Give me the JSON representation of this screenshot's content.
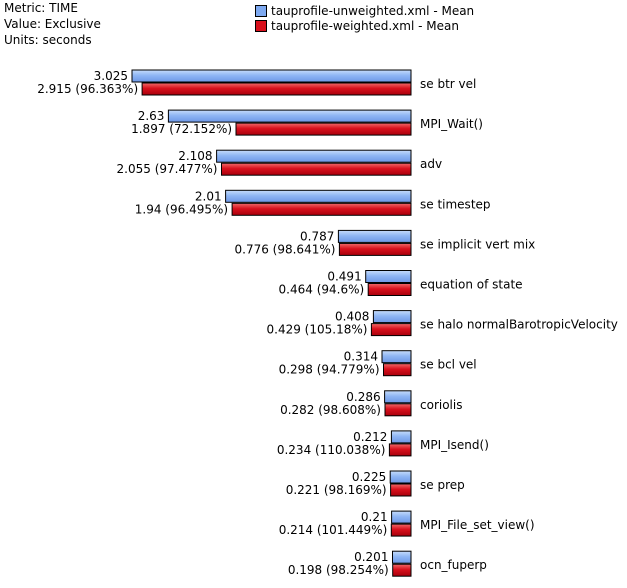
{
  "header": {
    "metric": "Metric: TIME",
    "value": "Value: Exclusive",
    "units": "Units: seconds"
  },
  "legend": [
    {
      "label": "tauprofile-unweighted.xml - Mean",
      "color": "#7ea9f0"
    },
    {
      "label": "tauprofile-weighted.xml - Mean",
      "color": "#d8101c"
    }
  ],
  "chart_data": {
    "type": "bar",
    "orientation": "horizontal",
    "categories": [
      "se btr vel",
      "MPI_Wait()",
      "adv",
      "se timestep",
      "se implicit vert mix",
      "equation of state",
      "se halo normalBarotropicVelocity",
      "se bcl vel",
      "coriolis",
      "MPI_Isend()",
      "se prep",
      "MPI_File_set_view()",
      "ocn_fuperp"
    ],
    "series": [
      {
        "name": "tauprofile-unweighted.xml - Mean",
        "values": [
          3.025,
          2.63,
          2.108,
          2.01,
          0.787,
          0.491,
          0.408,
          0.314,
          0.286,
          0.212,
          0.225,
          0.21,
          0.201
        ],
        "labels": [
          "3.025",
          "2.63",
          "2.108",
          "2.01",
          "0.787",
          "0.491",
          "0.408",
          "0.314",
          "0.286",
          "0.212",
          "0.225",
          "0.21",
          "0.201"
        ]
      },
      {
        "name": "tauprofile-weighted.xml - Mean",
        "values": [
          2.915,
          1.897,
          2.055,
          1.94,
          0.776,
          0.464,
          0.429,
          0.298,
          0.282,
          0.234,
          0.221,
          0.214,
          0.198
        ],
        "labels": [
          "2.915 (96.363%)",
          "1.897 (72.152%)",
          "2.055 (97.477%)",
          "1.94 (96.495%)",
          "0.776 (98.641%)",
          "0.464 (94.6%)",
          "0.429 (105.18%)",
          "0.298 (94.779%)",
          "0.282 (98.608%)",
          "0.234 (110.038%)",
          "0.221 (98.169%)",
          "0.214 (101.449%)",
          "0.198 (98.254%)"
        ]
      }
    ],
    "xlim": [
      0,
      3.025
    ],
    "bar_alignment": "right",
    "legend_position": "top",
    "grid": false
  }
}
